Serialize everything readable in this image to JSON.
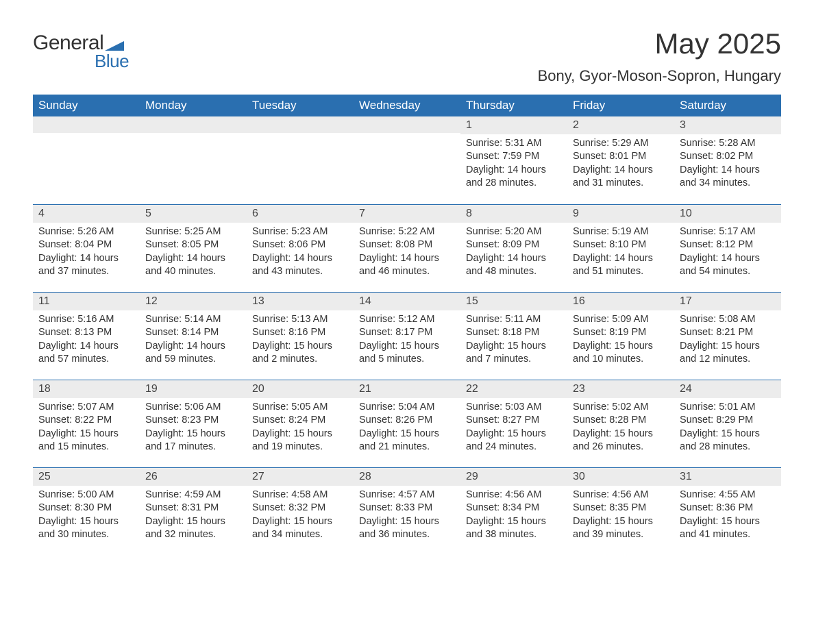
{
  "logo": {
    "text1": "General",
    "text2": "Blue",
    "flag_color": "#2a6fb0"
  },
  "title": "May 2025",
  "location": "Bony, Gyor-Moson-Sopron, Hungary",
  "colors": {
    "header_bg": "#2a6fb0",
    "header_text": "#ffffff",
    "daynum_bg": "#ececec",
    "border": "#2a6fb0",
    "body_text": "#333333",
    "page_bg": "#ffffff"
  },
  "fonts": {
    "title_size_pt": 32,
    "location_size_pt": 17,
    "header_size_pt": 13,
    "body_size_pt": 11
  },
  "daysOfWeek": [
    "Sunday",
    "Monday",
    "Tuesday",
    "Wednesday",
    "Thursday",
    "Friday",
    "Saturday"
  ],
  "weeks": [
    [
      {
        "blank": true
      },
      {
        "blank": true
      },
      {
        "blank": true
      },
      {
        "blank": true
      },
      {
        "n": "1",
        "sunrise": "5:31 AM",
        "sunset": "7:59 PM",
        "daylight": "14 hours and 28 minutes."
      },
      {
        "n": "2",
        "sunrise": "5:29 AM",
        "sunset": "8:01 PM",
        "daylight": "14 hours and 31 minutes."
      },
      {
        "n": "3",
        "sunrise": "5:28 AM",
        "sunset": "8:02 PM",
        "daylight": "14 hours and 34 minutes."
      }
    ],
    [
      {
        "n": "4",
        "sunrise": "5:26 AM",
        "sunset": "8:04 PM",
        "daylight": "14 hours and 37 minutes."
      },
      {
        "n": "5",
        "sunrise": "5:25 AM",
        "sunset": "8:05 PM",
        "daylight": "14 hours and 40 minutes."
      },
      {
        "n": "6",
        "sunrise": "5:23 AM",
        "sunset": "8:06 PM",
        "daylight": "14 hours and 43 minutes."
      },
      {
        "n": "7",
        "sunrise": "5:22 AM",
        "sunset": "8:08 PM",
        "daylight": "14 hours and 46 minutes."
      },
      {
        "n": "8",
        "sunrise": "5:20 AM",
        "sunset": "8:09 PM",
        "daylight": "14 hours and 48 minutes."
      },
      {
        "n": "9",
        "sunrise": "5:19 AM",
        "sunset": "8:10 PM",
        "daylight": "14 hours and 51 minutes."
      },
      {
        "n": "10",
        "sunrise": "5:17 AM",
        "sunset": "8:12 PM",
        "daylight": "14 hours and 54 minutes."
      }
    ],
    [
      {
        "n": "11",
        "sunrise": "5:16 AM",
        "sunset": "8:13 PM",
        "daylight": "14 hours and 57 minutes."
      },
      {
        "n": "12",
        "sunrise": "5:14 AM",
        "sunset": "8:14 PM",
        "daylight": "14 hours and 59 minutes."
      },
      {
        "n": "13",
        "sunrise": "5:13 AM",
        "sunset": "8:16 PM",
        "daylight": "15 hours and 2 minutes."
      },
      {
        "n": "14",
        "sunrise": "5:12 AM",
        "sunset": "8:17 PM",
        "daylight": "15 hours and 5 minutes."
      },
      {
        "n": "15",
        "sunrise": "5:11 AM",
        "sunset": "8:18 PM",
        "daylight": "15 hours and 7 minutes."
      },
      {
        "n": "16",
        "sunrise": "5:09 AM",
        "sunset": "8:19 PM",
        "daylight": "15 hours and 10 minutes."
      },
      {
        "n": "17",
        "sunrise": "5:08 AM",
        "sunset": "8:21 PM",
        "daylight": "15 hours and 12 minutes."
      }
    ],
    [
      {
        "n": "18",
        "sunrise": "5:07 AM",
        "sunset": "8:22 PM",
        "daylight": "15 hours and 15 minutes."
      },
      {
        "n": "19",
        "sunrise": "5:06 AM",
        "sunset": "8:23 PM",
        "daylight": "15 hours and 17 minutes."
      },
      {
        "n": "20",
        "sunrise": "5:05 AM",
        "sunset": "8:24 PM",
        "daylight": "15 hours and 19 minutes."
      },
      {
        "n": "21",
        "sunrise": "5:04 AM",
        "sunset": "8:26 PM",
        "daylight": "15 hours and 21 minutes."
      },
      {
        "n": "22",
        "sunrise": "5:03 AM",
        "sunset": "8:27 PM",
        "daylight": "15 hours and 24 minutes."
      },
      {
        "n": "23",
        "sunrise": "5:02 AM",
        "sunset": "8:28 PM",
        "daylight": "15 hours and 26 minutes."
      },
      {
        "n": "24",
        "sunrise": "5:01 AM",
        "sunset": "8:29 PM",
        "daylight": "15 hours and 28 minutes."
      }
    ],
    [
      {
        "n": "25",
        "sunrise": "5:00 AM",
        "sunset": "8:30 PM",
        "daylight": "15 hours and 30 minutes."
      },
      {
        "n": "26",
        "sunrise": "4:59 AM",
        "sunset": "8:31 PM",
        "daylight": "15 hours and 32 minutes."
      },
      {
        "n": "27",
        "sunrise": "4:58 AM",
        "sunset": "8:32 PM",
        "daylight": "15 hours and 34 minutes."
      },
      {
        "n": "28",
        "sunrise": "4:57 AM",
        "sunset": "8:33 PM",
        "daylight": "15 hours and 36 minutes."
      },
      {
        "n": "29",
        "sunrise": "4:56 AM",
        "sunset": "8:34 PM",
        "daylight": "15 hours and 38 minutes."
      },
      {
        "n": "30",
        "sunrise": "4:56 AM",
        "sunset": "8:35 PM",
        "daylight": "15 hours and 39 minutes."
      },
      {
        "n": "31",
        "sunrise": "4:55 AM",
        "sunset": "8:36 PM",
        "daylight": "15 hours and 41 minutes."
      }
    ]
  ],
  "labels": {
    "sunrise": "Sunrise:",
    "sunset": "Sunset:",
    "daylight": "Daylight:"
  }
}
